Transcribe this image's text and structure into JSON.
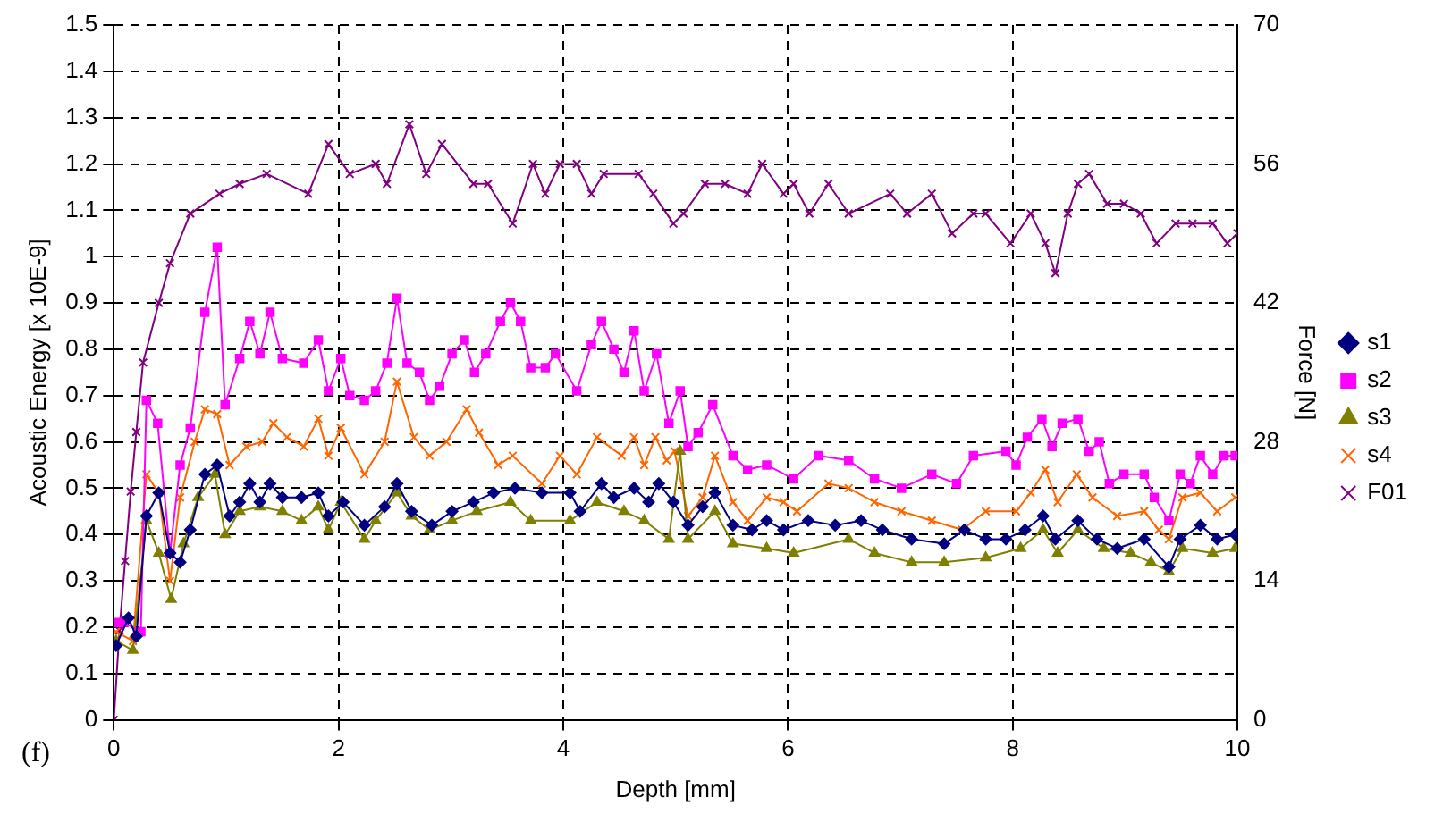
{
  "chart_data": {
    "type": "line",
    "xlabel": "Depth [mm]",
    "ylabel": "Acoustic Energy [x 10E-9]",
    "y2label": "Force [N]",
    "annotations": [
      "(f)"
    ],
    "xlim": [
      0,
      10
    ],
    "xticks": [
      0,
      2,
      4,
      6,
      8,
      10
    ],
    "ylim": [
      0,
      1.5
    ],
    "yticks": [
      0,
      0.1,
      0.2,
      0.3,
      0.4,
      0.5,
      0.6,
      0.7,
      0.8,
      0.9,
      1,
      1.1,
      1.2,
      1.3,
      1.4,
      1.5
    ],
    "y2lim": [
      0,
      70
    ],
    "y2ticks": [
      0,
      14,
      28,
      42,
      56,
      70
    ],
    "grid": true,
    "legend": "right",
    "line_style": "solid",
    "series": [
      {
        "name": "s1",
        "color": "#000080",
        "marker": "diamond",
        "x": [
          0.02,
          0.13,
          0.2,
          0.29,
          0.4,
          0.5,
          0.59,
          0.68,
          0.81,
          0.92,
          1.03,
          1.12,
          1.21,
          1.3,
          1.39,
          1.5,
          1.67,
          1.82,
          1.91,
          2.04,
          2.23,
          2.41,
          2.52,
          2.65,
          2.83,
          3.01,
          3.2,
          3.38,
          3.57,
          3.81,
          4.06,
          4.15,
          4.34,
          4.45,
          4.63,
          4.76,
          4.85,
          4.98,
          5.11,
          5.24,
          5.35,
          5.51,
          5.68,
          5.81,
          5.96,
          6.18,
          6.42,
          6.65,
          6.84,
          7.1,
          7.39,
          7.57,
          7.76,
          7.94,
          8.11,
          8.27,
          8.38,
          8.58,
          8.75,
          8.93,
          9.17,
          9.39,
          9.49,
          9.67,
          9.82,
          9.98
        ],
        "values": [
          0.16,
          0.22,
          0.18,
          0.44,
          0.49,
          0.36,
          0.34,
          0.41,
          0.53,
          0.55,
          0.44,
          0.47,
          0.51,
          0.47,
          0.51,
          0.48,
          0.48,
          0.49,
          0.44,
          0.47,
          0.42,
          0.46,
          0.51,
          0.45,
          0.42,
          0.45,
          0.47,
          0.49,
          0.5,
          0.49,
          0.49,
          0.45,
          0.51,
          0.48,
          0.5,
          0.47,
          0.51,
          0.47,
          0.42,
          0.46,
          0.49,
          0.42,
          0.41,
          0.43,
          0.41,
          0.43,
          0.42,
          0.43,
          0.41,
          0.39,
          0.38,
          0.41,
          0.39,
          0.39,
          0.41,
          0.44,
          0.39,
          0.43,
          0.39,
          0.37,
          0.39,
          0.33,
          0.39,
          0.42,
          0.39,
          0.4
        ]
      },
      {
        "name": "s2",
        "color": "#ff00ff",
        "marker": "square",
        "x": [
          0.02,
          0.09,
          0.24,
          0.29,
          0.39,
          0.5,
          0.59,
          0.68,
          0.81,
          0.92,
          0.99,
          1.12,
          1.21,
          1.3,
          1.39,
          1.5,
          1.69,
          1.82,
          1.91,
          2.02,
          2.1,
          2.23,
          2.33,
          2.43,
          2.52,
          2.61,
          2.72,
          2.81,
          2.9,
          3.01,
          3.12,
          3.21,
          3.31,
          3.44,
          3.53,
          3.62,
          3.71,
          3.84,
          3.93,
          4.12,
          4.25,
          4.34,
          4.45,
          4.54,
          4.63,
          4.72,
          4.83,
          4.94,
          5.04,
          5.11,
          5.2,
          5.33,
          5.51,
          5.64,
          5.81,
          6.05,
          6.27,
          6.54,
          6.77,
          7.01,
          7.28,
          7.5,
          7.65,
          7.94,
          8.03,
          8.13,
          8.26,
          8.35,
          8.44,
          8.58,
          8.68,
          8.77,
          8.86,
          8.99,
          9.17,
          9.26,
          9.39,
          9.49,
          9.58,
          9.67,
          9.78,
          9.88,
          9.98
        ],
        "values": [
          0.21,
          0.21,
          0.19,
          0.69,
          0.64,
          0.36,
          0.55,
          0.63,
          0.88,
          1.02,
          0.68,
          0.78,
          0.86,
          0.79,
          0.88,
          0.78,
          0.77,
          0.82,
          0.71,
          0.78,
          0.7,
          0.69,
          0.71,
          0.77,
          0.91,
          0.77,
          0.75,
          0.69,
          0.72,
          0.79,
          0.82,
          0.75,
          0.79,
          0.86,
          0.9,
          0.86,
          0.76,
          0.76,
          0.79,
          0.71,
          0.81,
          0.86,
          0.8,
          0.75,
          0.84,
          0.71,
          0.79,
          0.64,
          0.71,
          0.59,
          0.62,
          0.68,
          0.57,
          0.54,
          0.55,
          0.52,
          0.57,
          0.56,
          0.52,
          0.5,
          0.53,
          0.51,
          0.57,
          0.58,
          0.55,
          0.61,
          0.65,
          0.59,
          0.64,
          0.65,
          0.58,
          0.6,
          0.51,
          0.53,
          0.53,
          0.48,
          0.43,
          0.53,
          0.51,
          0.57,
          0.53,
          0.57,
          0.57
        ]
      },
      {
        "name": "s3",
        "color": "#808000",
        "marker": "triangle",
        "x": [
          0.02,
          0.17,
          0.29,
          0.4,
          0.51,
          0.62,
          0.75,
          0.9,
          0.99,
          1.12,
          1.3,
          1.5,
          1.67,
          1.82,
          1.91,
          2.02,
          2.23,
          2.33,
          2.52,
          2.65,
          2.81,
          3.01,
          3.23,
          3.53,
          3.71,
          4.06,
          4.3,
          4.54,
          4.72,
          4.94,
          5.04,
          5.11,
          5.35,
          5.51,
          5.81,
          6.05,
          6.54,
          6.77,
          7.1,
          7.39,
          7.76,
          8.07,
          8.27,
          8.4,
          8.58,
          8.81,
          9.05,
          9.23,
          9.39,
          9.51,
          9.78,
          9.98
        ],
        "values": [
          0.17,
          0.15,
          0.43,
          0.36,
          0.26,
          0.38,
          0.48,
          0.53,
          0.4,
          0.45,
          0.46,
          0.45,
          0.43,
          0.46,
          0.41,
          0.47,
          0.39,
          0.43,
          0.49,
          0.44,
          0.41,
          0.43,
          0.45,
          0.47,
          0.43,
          0.43,
          0.47,
          0.45,
          0.43,
          0.39,
          0.58,
          0.39,
          0.45,
          0.38,
          0.37,
          0.36,
          0.39,
          0.36,
          0.34,
          0.34,
          0.35,
          0.37,
          0.41,
          0.36,
          0.41,
          0.37,
          0.36,
          0.34,
          0.32,
          0.37,
          0.36,
          0.37
        ]
      },
      {
        "name": "s4",
        "color": "#ff6600",
        "marker": "cross",
        "x": [
          0.02,
          0.17,
          0.29,
          0.4,
          0.5,
          0.59,
          0.72,
          0.81,
          0.92,
          1.03,
          1.18,
          1.32,
          1.42,
          1.54,
          1.69,
          1.82,
          1.91,
          2.02,
          2.23,
          2.41,
          2.52,
          2.67,
          2.81,
          2.96,
          3.14,
          3.25,
          3.42,
          3.55,
          3.81,
          3.97,
          4.12,
          4.3,
          4.52,
          4.63,
          4.72,
          4.82,
          4.92,
          4.99,
          5.11,
          5.24,
          5.35,
          5.51,
          5.64,
          5.81,
          5.96,
          6.08,
          6.36,
          6.54,
          6.77,
          7.01,
          7.28,
          7.55,
          7.76,
          8.03,
          8.16,
          8.29,
          8.4,
          8.57,
          8.71,
          8.93,
          9.17,
          9.3,
          9.39,
          9.51,
          9.67,
          9.82,
          9.98
        ],
        "values": [
          0.19,
          0.17,
          0.53,
          0.49,
          0.3,
          0.48,
          0.6,
          0.67,
          0.66,
          0.55,
          0.59,
          0.6,
          0.64,
          0.61,
          0.59,
          0.65,
          0.57,
          0.63,
          0.53,
          0.6,
          0.73,
          0.61,
          0.57,
          0.6,
          0.67,
          0.62,
          0.55,
          0.57,
          0.51,
          0.57,
          0.53,
          0.61,
          0.57,
          0.61,
          0.55,
          0.61,
          0.56,
          0.58,
          0.44,
          0.48,
          0.57,
          0.47,
          0.43,
          0.48,
          0.47,
          0.45,
          0.51,
          0.5,
          0.47,
          0.45,
          0.43,
          0.41,
          0.45,
          0.45,
          0.49,
          0.54,
          0.47,
          0.53,
          0.48,
          0.44,
          0.45,
          0.41,
          0.39,
          0.48,
          0.49,
          0.45,
          0.48
        ]
      },
      {
        "name": "F01",
        "color": "#800080",
        "marker": "cross",
        "axis": "y2",
        "x": [
          0,
          0.05,
          0.1,
          0.15,
          0.2,
          0.26,
          0.4,
          0.5,
          0.68,
          0.94,
          1.12,
          1.36,
          1.73,
          1.91,
          2.1,
          2.33,
          2.43,
          2.63,
          2.78,
          2.92,
          3.2,
          3.33,
          3.55,
          3.73,
          3.84,
          3.97,
          4.12,
          4.25,
          4.36,
          4.67,
          4.8,
          4.98,
          5.07,
          5.26,
          5.44,
          5.64,
          5.77,
          5.96,
          6.05,
          6.19,
          6.36,
          6.54,
          6.91,
          7.06,
          7.28,
          7.46,
          7.65,
          7.76,
          7.98,
          8.16,
          8.29,
          8.38,
          8.49,
          8.58,
          8.68,
          8.84,
          8.99,
          9.14,
          9.28,
          9.45,
          9.6,
          9.78,
          9.91,
          10
        ],
        "values": [
          0,
          9,
          16,
          23,
          29,
          36,
          42,
          46,
          51,
          53,
          54,
          55,
          53,
          58,
          55,
          56,
          54,
          60,
          55,
          58,
          54,
          54,
          50,
          56,
          53,
          56,
          56,
          53,
          55,
          55,
          53,
          50,
          51,
          54,
          54,
          53,
          56,
          53,
          54,
          51,
          54,
          51,
          53,
          51,
          53,
          49,
          51,
          51,
          48,
          51,
          48,
          45,
          51,
          54,
          55,
          52,
          52,
          51,
          48,
          50,
          50,
          50,
          48,
          49
        ]
      }
    ]
  }
}
